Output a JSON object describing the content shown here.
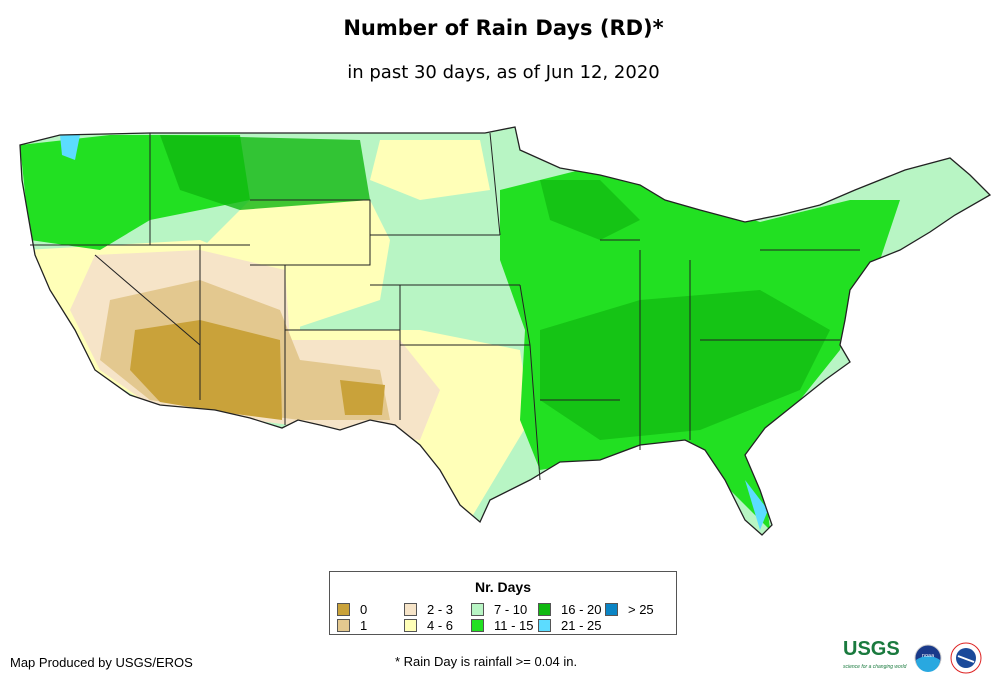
{
  "title": "Number of Rain Days (RD)*",
  "subtitle": "in past 30 days, as of Jun 12, 2020",
  "legend": {
    "title": "Nr. Days",
    "items": [
      {
        "label": "0",
        "color": "#c9a23a"
      },
      {
        "label": "1",
        "color": "#e3c88f"
      },
      {
        "label": "2 - 3",
        "color": "#f6e4c8"
      },
      {
        "label": "4 - 6",
        "color": "#ffffb8"
      },
      {
        "label": "7 - 10",
        "color": "#b8f5c4"
      },
      {
        "label": "11 - 15",
        "color": "#22e022"
      },
      {
        "label": "16 - 20",
        "color": "#10b810"
      },
      {
        "label": "21 - 25",
        "color": "#5cdcff"
      },
      {
        "label": "> 25",
        "color": "#0a84c4"
      }
    ]
  },
  "credit": "Map Produced by USGS/EROS",
  "footnote": "* Rain Day is rainfall >= 0.04 in.",
  "logos": {
    "usgs": "USGS",
    "usgs_tagline": "science for a changing world",
    "noaa": "noaa",
    "nws": "National Weather Service"
  }
}
